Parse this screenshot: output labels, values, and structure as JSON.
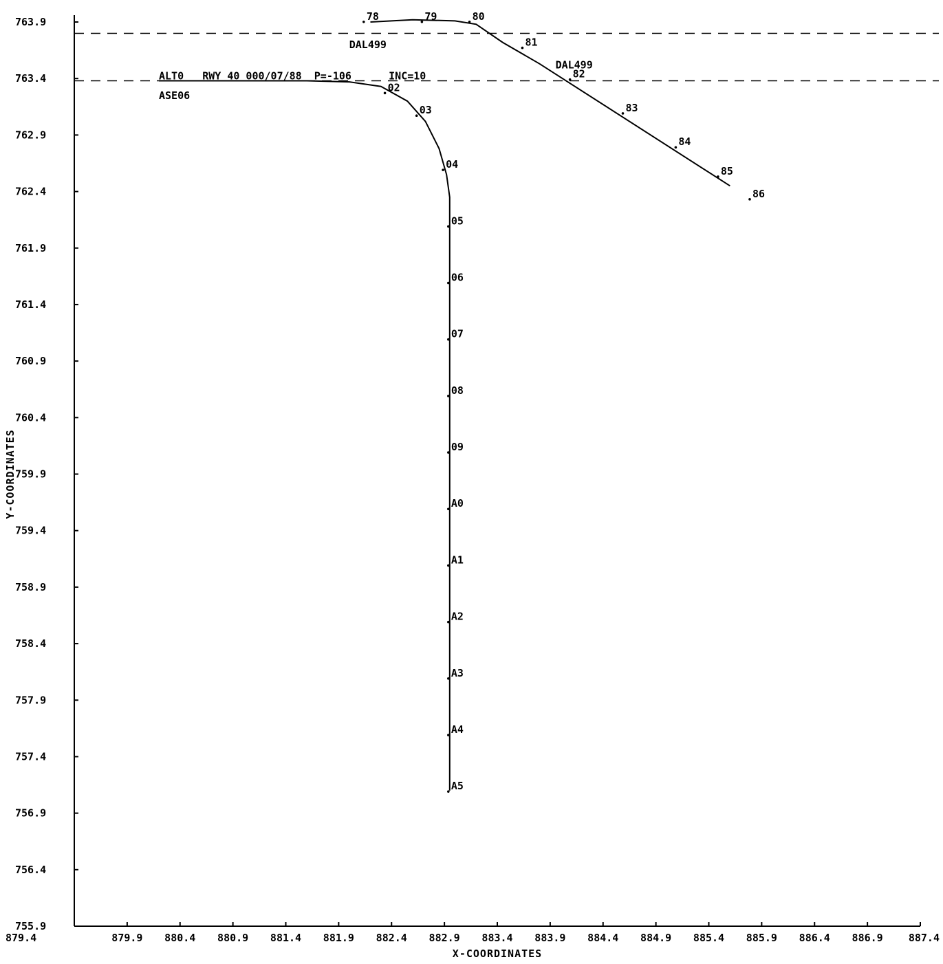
{
  "chart_data": {
    "type": "line",
    "xlabel": "X-COORDINATES",
    "ylabel": "Y-COORDINATES",
    "xlim": [
      879.4,
      887.4
    ],
    "ylim": [
      755.9,
      763.9
    ],
    "x_ticks": [
      "879.4",
      "879.9",
      "880.4",
      "880.9",
      "881.4",
      "881.9",
      "882.4",
      "882.9",
      "883.4",
      "883.9",
      "884.4",
      "884.9",
      "885.4",
      "885.9",
      "886.4",
      "886.9",
      "887.4"
    ],
    "y_ticks": [
      "763.9",
      "763.4",
      "762.9",
      "762.4",
      "761.9",
      "761.4",
      "760.9",
      "760.4",
      "759.9",
      "759.4",
      "758.9",
      "758.4",
      "757.9",
      "757.4",
      "756.9",
      "756.4",
      "755.9"
    ],
    "reference_lines_y": [
      763.8,
      763.38
    ],
    "annotation": "ALT0   RWY 40 000/07/88  P=-106      INC=10",
    "grid": false,
    "tracks": [
      {
        "name": "ASE06",
        "label_position": [
          880.2,
          763.25
        ],
        "points": [
          [
            880.2,
            763.38
          ],
          [
            881.0,
            763.38
          ],
          [
            881.6,
            763.38
          ],
          [
            882.0,
            763.37
          ],
          [
            882.3,
            763.33
          ],
          [
            882.55,
            763.2
          ],
          [
            882.72,
            763.02
          ],
          [
            882.85,
            762.78
          ],
          [
            882.92,
            762.55
          ],
          [
            882.95,
            762.35
          ],
          [
            882.95,
            757.1
          ]
        ],
        "marks": [
          {
            "label": "02",
            "x": 882.35,
            "y": 763.32
          },
          {
            "label": "03",
            "x": 882.65,
            "y": 763.12
          },
          {
            "label": "04",
            "x": 882.9,
            "y": 762.64
          },
          {
            "label": "05",
            "x": 882.95,
            "y": 762.14
          },
          {
            "label": "06",
            "x": 882.95,
            "y": 761.64
          },
          {
            "label": "07",
            "x": 882.95,
            "y": 761.14
          },
          {
            "label": "08",
            "x": 882.95,
            "y": 760.64
          },
          {
            "label": "09",
            "x": 882.95,
            "y": 760.14
          },
          {
            "label": "A0",
            "x": 882.95,
            "y": 759.64
          },
          {
            "label": "A1",
            "x": 882.95,
            "y": 759.14
          },
          {
            "label": "A2",
            "x": 882.95,
            "y": 758.64
          },
          {
            "label": "A3",
            "x": 882.95,
            "y": 758.14
          },
          {
            "label": "A4",
            "x": 882.95,
            "y": 757.64
          },
          {
            "label": "A5",
            "x": 882.95,
            "y": 757.14
          }
        ]
      },
      {
        "name": "DAL499",
        "label_position": [
          882.0,
          763.7
        ],
        "second_label": "DAL499",
        "second_label_position": [
          883.95,
          763.52
        ],
        "points": [
          [
            882.2,
            763.9
          ],
          [
            882.6,
            763.92
          ],
          [
            883.0,
            763.91
          ],
          [
            883.2,
            763.88
          ],
          [
            883.45,
            763.72
          ],
          [
            883.8,
            763.53
          ],
          [
            885.6,
            762.45
          ]
        ],
        "marks": [
          {
            "label": "78",
            "x": 882.15,
            "y": 763.95
          },
          {
            "label": "79",
            "x": 882.7,
            "y": 763.95
          },
          {
            "label": "80",
            "x": 883.15,
            "y": 763.95
          },
          {
            "label": "81",
            "x": 883.65,
            "y": 763.72
          },
          {
            "label": "82",
            "x": 884.1,
            "y": 763.44
          },
          {
            "label": "83",
            "x": 884.6,
            "y": 763.14
          },
          {
            "label": "84",
            "x": 885.1,
            "y": 762.84
          },
          {
            "label": "85",
            "x": 885.5,
            "y": 762.58
          },
          {
            "label": "86",
            "x": 885.8,
            "y": 762.38
          }
        ]
      }
    ]
  }
}
